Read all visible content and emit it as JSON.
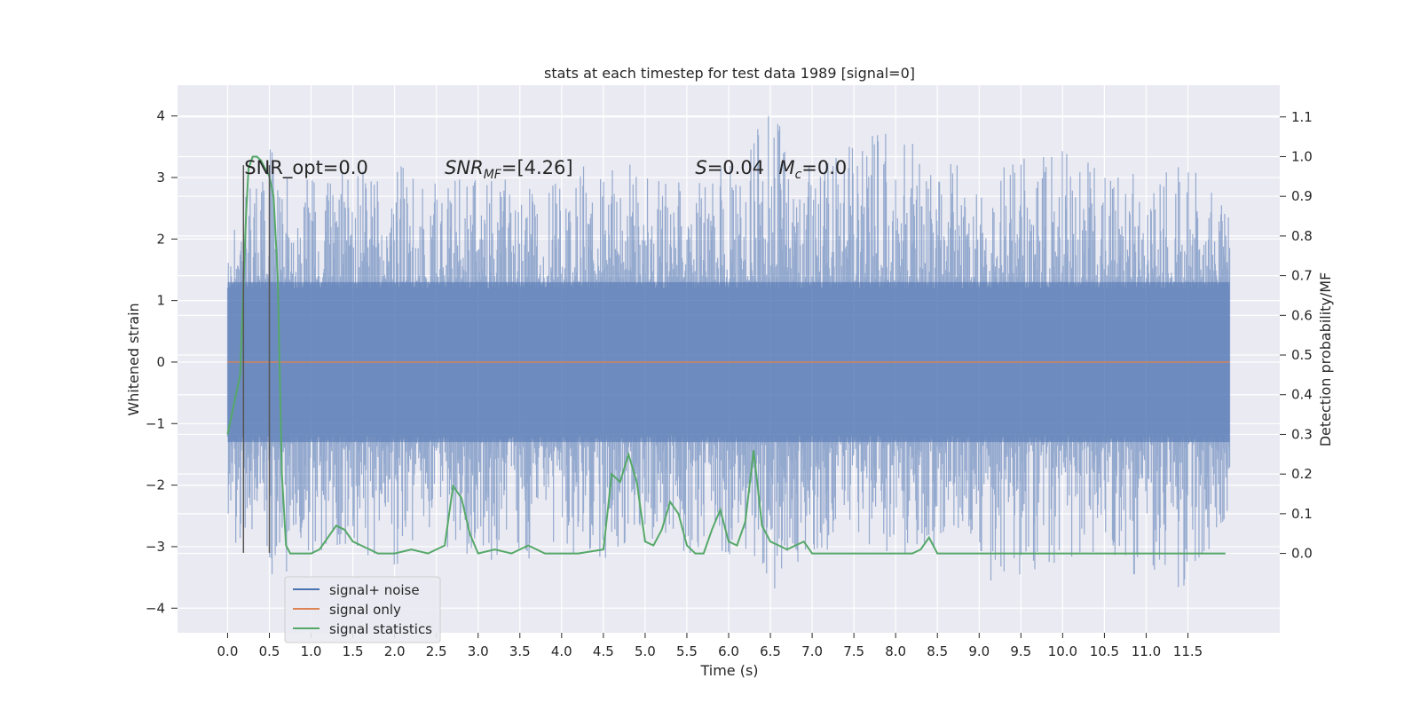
{
  "chart_data": {
    "type": "line",
    "title": "stats at each timestep for test data 1989 [signal=0]",
    "xlabel": "Time (s)",
    "ylabel_left": "Whitened strain",
    "ylabel_right": "Detection probability/MF",
    "xlim": [
      -0.6,
      12.6
    ],
    "ylim_left": [
      -4.4,
      4.5
    ],
    "ylim_right": [
      -0.2,
      1.18
    ],
    "x_ticks": [
      0.0,
      0.5,
      1.0,
      1.5,
      2.0,
      2.5,
      3.0,
      3.5,
      4.0,
      4.5,
      5.0,
      5.5,
      6.0,
      6.5,
      7.0,
      7.5,
      8.0,
      8.5,
      9.0,
      9.5,
      10.0,
      10.5,
      11.0,
      11.5
    ],
    "x_tick_labels": [
      "0.0",
      "0.5",
      "1.0",
      "1.5",
      "2.0",
      "2.5",
      "3.0",
      "3.5",
      "4.0",
      "4.5",
      "5.0",
      "5.5",
      "6.0",
      "6.5",
      "7.0",
      "7.5",
      "8.0",
      "8.5",
      "9.0",
      "9.5",
      "10.0",
      "10.5",
      "11.0",
      "11.5"
    ],
    "y_ticks_left": [
      -4,
      -3,
      -2,
      -1,
      0,
      1,
      2,
      3,
      4
    ],
    "y_tick_labels_left": [
      "−4",
      "−3",
      "−2",
      "−1",
      "0",
      "1",
      "2",
      "3",
      "4"
    ],
    "y_ticks_right": [
      0.0,
      0.1,
      0.2,
      0.3,
      0.4,
      0.5,
      0.6,
      0.7,
      0.8,
      0.9,
      1.0,
      1.1
    ],
    "y_tick_labels_right": [
      "0.0",
      "0.1",
      "0.2",
      "0.3",
      "0.4",
      "0.5",
      "0.6",
      "0.7",
      "0.8",
      "0.9",
      "1.0",
      "1.1"
    ],
    "grid": true,
    "legend_position": "lower-left",
    "annotations": [
      {
        "text": "SNR_opt=0.0",
        "x": 0.2,
        "y": 3.2
      },
      {
        "text": "SNR_MF=[4.26]",
        "x": 2.6,
        "y": 3.2
      },
      {
        "text": "S=0.04",
        "x": 5.6,
        "y": 3.2
      },
      {
        "text": "M_c=0.0",
        "x": 6.6,
        "y": 3.2
      }
    ],
    "vertical_markers": [
      {
        "x": 0.19,
        "y_start": -3.1,
        "y_end": 3.2
      },
      {
        "x": 0.5,
        "y_start": -3.1,
        "y_end": 3.2
      }
    ],
    "series": [
      {
        "name": "signal+ noise",
        "color": "#4c72b0",
        "axis": "left",
        "x_range": [
          0.0,
          12.0
        ],
        "typical_band": [
          -1.3,
          1.3
        ],
        "envelope_upper": [
          [
            0.0,
            2.0
          ],
          [
            0.5,
            3.8
          ],
          [
            1.0,
            3.0
          ],
          [
            1.5,
            3.2
          ],
          [
            2.0,
            3.2
          ],
          [
            3.0,
            3.0
          ],
          [
            3.5,
            3.0
          ],
          [
            4.0,
            3.2
          ],
          [
            4.8,
            3.4
          ],
          [
            5.0,
            3.0
          ],
          [
            6.0,
            3.2
          ],
          [
            6.5,
            4.1
          ],
          [
            7.0,
            3.2
          ],
          [
            8.0,
            3.9
          ],
          [
            8.5,
            3.4
          ],
          [
            9.0,
            3.0
          ],
          [
            10.0,
            3.6
          ],
          [
            10.5,
            3.2
          ],
          [
            11.0,
            3.0
          ],
          [
            11.5,
            3.3
          ],
          [
            12.0,
            2.5
          ]
        ],
        "envelope_lower": [
          [
            0.0,
            -2.8
          ],
          [
            0.5,
            -3.6
          ],
          [
            1.0,
            -3.2
          ],
          [
            1.5,
            -3.0
          ],
          [
            2.0,
            -3.4
          ],
          [
            2.5,
            -3.0
          ],
          [
            3.0,
            -3.2
          ],
          [
            3.5,
            -3.3
          ],
          [
            4.0,
            -3.1
          ],
          [
            4.5,
            -3.2
          ],
          [
            5.0,
            -3.0
          ],
          [
            5.5,
            -3.4
          ],
          [
            6.0,
            -3.2
          ],
          [
            6.5,
            -3.8
          ],
          [
            7.0,
            -3.1
          ],
          [
            7.5,
            -3.0
          ],
          [
            8.0,
            -3.2
          ],
          [
            8.5,
            -3.0
          ],
          [
            9.0,
            -3.0
          ],
          [
            9.2,
            -3.8
          ],
          [
            10.0,
            -3.2
          ],
          [
            10.5,
            -3.1
          ],
          [
            11.0,
            -3.6
          ],
          [
            11.5,
            -3.7
          ],
          [
            12.0,
            -3.0
          ]
        ]
      },
      {
        "name": "signal only",
        "color": "#dd8452",
        "axis": "left",
        "x": [
          0.0,
          12.0
        ],
        "y": [
          0.0,
          0.0
        ]
      },
      {
        "name": "signal statistics",
        "color": "#55a868",
        "axis": "right",
        "x": [
          0.0,
          0.15,
          0.22,
          0.25,
          0.3,
          0.35,
          0.4,
          0.45,
          0.5,
          0.55,
          0.6,
          0.65,
          0.7,
          0.75,
          0.8,
          0.9,
          1.0,
          1.1,
          1.2,
          1.3,
          1.4,
          1.5,
          1.6,
          1.7,
          1.8,
          1.9,
          2.0,
          2.2,
          2.4,
          2.6,
          2.7,
          2.8,
          2.9,
          3.0,
          3.2,
          3.4,
          3.6,
          3.8,
          4.0,
          4.2,
          4.5,
          4.6,
          4.7,
          4.8,
          4.9,
          5.0,
          5.1,
          5.2,
          5.3,
          5.4,
          5.5,
          5.6,
          5.7,
          5.8,
          5.9,
          6.0,
          6.1,
          6.2,
          6.3,
          6.4,
          6.5,
          6.6,
          6.7,
          6.8,
          6.9,
          7.0,
          7.2,
          7.5,
          8.0,
          8.2,
          8.3,
          8.4,
          8.5,
          9.0,
          9.5,
          10.0,
          11.0,
          11.5,
          11.95
        ],
        "y": [
          0.3,
          0.45,
          0.85,
          0.97,
          1.0,
          1.0,
          0.99,
          0.97,
          0.95,
          0.9,
          0.7,
          0.2,
          0.02,
          0.0,
          0.0,
          0.0,
          0.0,
          0.01,
          0.04,
          0.07,
          0.06,
          0.03,
          0.02,
          0.01,
          0.0,
          0.0,
          0.0,
          0.01,
          0.0,
          0.02,
          0.17,
          0.14,
          0.05,
          0.0,
          0.01,
          0.0,
          0.02,
          0.0,
          0.0,
          0.0,
          0.01,
          0.2,
          0.18,
          0.25,
          0.18,
          0.03,
          0.02,
          0.06,
          0.13,
          0.1,
          0.02,
          0.0,
          0.0,
          0.06,
          0.11,
          0.03,
          0.02,
          0.08,
          0.26,
          0.07,
          0.03,
          0.02,
          0.01,
          0.02,
          0.03,
          0.0,
          0.0,
          0.0,
          0.0,
          0.0,
          0.01,
          0.04,
          0.0,
          0.0,
          0.0,
          0.0,
          0.0,
          0.0,
          0.0
        ]
      }
    ]
  },
  "legend": {
    "items": [
      {
        "label": "signal+ noise",
        "color": "#4c72b0"
      },
      {
        "label": "signal only",
        "color": "#dd8452"
      },
      {
        "label": "signal statistics",
        "color": "#55a868"
      }
    ],
    "background": "#eaeaf2"
  },
  "theme": {
    "plot_background": "#eaeaf2",
    "grid_color": "#ffffff",
    "marker_color": "#555555"
  }
}
